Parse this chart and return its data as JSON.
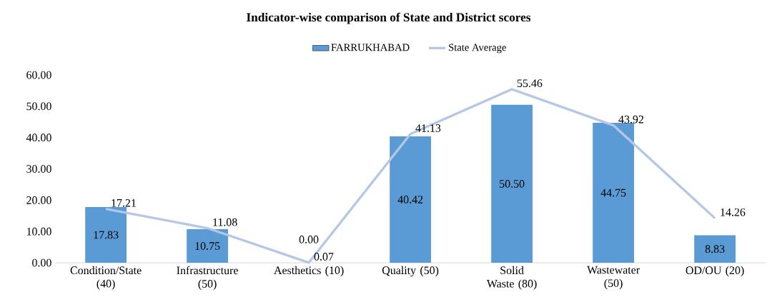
{
  "chart_data": {
    "type": "bar",
    "title": "Indicator-wise  comparison  of State and District scores",
    "categories": [
      "Condition/State (40)",
      "Infrastructure (50)",
      "Aesthetics (10)",
      "Quality (50)",
      "Solid Waste (80)",
      "Wastewater (50)",
      "OD/OU (20)"
    ],
    "series": [
      {
        "name": "FARRUKHABAD",
        "type": "bar",
        "color": "#5b9bd5",
        "values": [
          17.83,
          10.75,
          0.0,
          40.42,
          50.5,
          44.75,
          8.83
        ],
        "value_labels": [
          "17.83",
          "10.75",
          "0.00",
          "40.42",
          "50.50",
          "44.75",
          "8.83"
        ]
      },
      {
        "name": "State Average",
        "type": "line",
        "color": "#b4c7e7",
        "values": [
          17.21,
          11.08,
          0.07,
          41.13,
          55.46,
          43.92,
          14.26
        ],
        "value_labels": [
          "17.21",
          "11.08",
          "0.07",
          "41.13",
          "55.46",
          "43.92",
          "14.26"
        ]
      }
    ],
    "ylim": [
      0,
      60
    ],
    "yticks": [
      {
        "value": 0,
        "label": "0.00"
      },
      {
        "value": 10,
        "label": "10.00"
      },
      {
        "value": 20,
        "label": "20.00"
      },
      {
        "value": 30,
        "label": "30.00"
      },
      {
        "value": 40,
        "label": "40.00"
      },
      {
        "value": 50,
        "label": "50.00"
      },
      {
        "value": 60,
        "label": "60.00"
      }
    ],
    "grid": false,
    "legend": "top",
    "marker": "none"
  }
}
